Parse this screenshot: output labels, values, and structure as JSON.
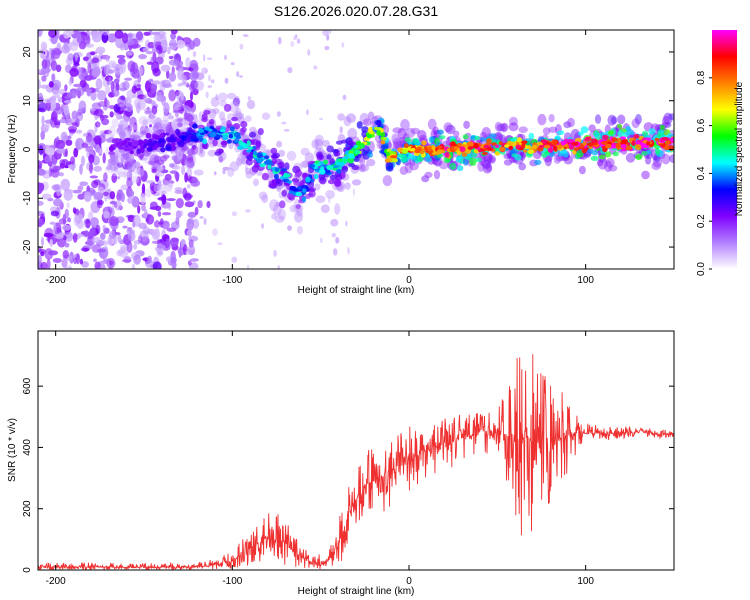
{
  "figure_title": "S126.2026.020.07.28.G31",
  "chart_data": [
    {
      "type": "heatmap",
      "title": "S126.2026.020.07.28.G31",
      "xlabel": "Height of straight line (km)",
      "ylabel": "Frequency (Hz)",
      "xlim": [
        -210,
        150
      ],
      "ylim": [
        -24.5,
        24.5
      ],
      "xticks": [
        -200,
        -100,
        0,
        100
      ],
      "xtick_labels": [
        "-200",
        "-100",
        "0",
        "100"
      ],
      "yticks": [
        -20,
        -10,
        0,
        10,
        20
      ],
      "ytick_labels": [
        "-20",
        "-10",
        "0",
        "10",
        "20"
      ],
      "colorbar": {
        "label": "Normalized spectral amplitude",
        "range": [
          0,
          1
        ],
        "ticks": [
          0.0,
          0.2,
          0.4,
          0.6,
          0.8
        ],
        "tick_labels": [
          "0.0",
          "0.2",
          "0.4",
          "0.6",
          "0.8"
        ],
        "colormap": [
          "#ffffff",
          "#b27fff",
          "#7f00ff",
          "#0000ff",
          "#00ffff",
          "#00ff00",
          "#ffff00",
          "#ff8000",
          "#ff0000",
          "#ff00ff"
        ]
      },
      "ridge": {
        "x": [
          -170,
          -150,
          -130,
          -115,
          -100,
          -90,
          -80,
          -70,
          -60,
          -55,
          -50,
          -45,
          -40,
          -35,
          -30,
          -25,
          -20,
          -17,
          -15,
          -12,
          -10,
          -5,
          0,
          20,
          50,
          80,
          100,
          120,
          150
        ],
        "y": [
          0.5,
          1.0,
          2.0,
          3.5,
          3.0,
          0.0,
          -3.0,
          -6.0,
          -9.0,
          -5.0,
          -3.0,
          -4.0,
          -3.0,
          -1.0,
          0.0,
          1.5,
          4.0,
          5.0,
          2.0,
          -1.0,
          -1.5,
          -0.5,
          0.0,
          0.0,
          0.5,
          0.8,
          1.0,
          1.2,
          1.5
        ],
        "amplitude": [
          0.2,
          0.25,
          0.3,
          0.4,
          0.45,
          0.45,
          0.45,
          0.45,
          0.4,
          0.45,
          0.5,
          0.45,
          0.5,
          0.55,
          0.6,
          0.65,
          0.7,
          0.7,
          0.7,
          0.75,
          0.75,
          0.8,
          0.85,
          0.9,
          0.9,
          0.9,
          0.95,
          1.0,
          1.0
        ]
      },
      "noise_region_x": [
        -210,
        -120
      ]
    },
    {
      "type": "line",
      "xlabel": "Height of straight line (km)",
      "ylabel": "SNR (10 * v/v)",
      "xlim": [
        -210,
        150
      ],
      "ylim": [
        0,
        780
      ],
      "xticks": [
        -200,
        -100,
        0,
        100
      ],
      "xtick_labels": [
        "-200",
        "-100",
        "0",
        "100"
      ],
      "yticks": [
        0,
        200,
        400,
        600
      ],
      "ytick_labels": [
        "0",
        "200",
        "400",
        "600"
      ],
      "line_color": "#ee3030",
      "series": [
        {
          "name": "SNR",
          "x": [
            -210,
            -180,
            -150,
            -130,
            -115,
            -100,
            -90,
            -80,
            -75,
            -70,
            -65,
            -60,
            -55,
            -50,
            -45,
            -40,
            -35,
            -30,
            -25,
            -20,
            -15,
            -10,
            -5,
            0,
            10,
            20,
            30,
            40,
            50,
            55,
            60,
            65,
            70,
            75,
            80,
            85,
            90,
            95,
            100,
            110,
            120,
            130,
            140,
            150
          ],
          "y": [
            10,
            10,
            8,
            10,
            12,
            30,
            70,
            110,
            100,
            90,
            60,
            40,
            25,
            20,
            35,
            80,
            170,
            230,
            280,
            290,
            310,
            330,
            350,
            360,
            390,
            410,
            430,
            450,
            460,
            440,
            430,
            420,
            420,
            410,
            420,
            430,
            440,
            450,
            445,
            445,
            450,
            450,
            445,
            445
          ],
          "envelope": [
            25,
            25,
            22,
            25,
            30,
            60,
            140,
            200,
            190,
            170,
            120,
            80,
            60,
            50,
            80,
            160,
            260,
            330,
            380,
            420,
            440,
            460,
            460,
            470,
            480,
            500,
            510,
            520,
            540,
            600,
            680,
            760,
            720,
            680,
            640,
            600,
            560,
            520,
            480,
            470,
            470,
            465,
            460,
            460
          ]
        }
      ]
    }
  ]
}
